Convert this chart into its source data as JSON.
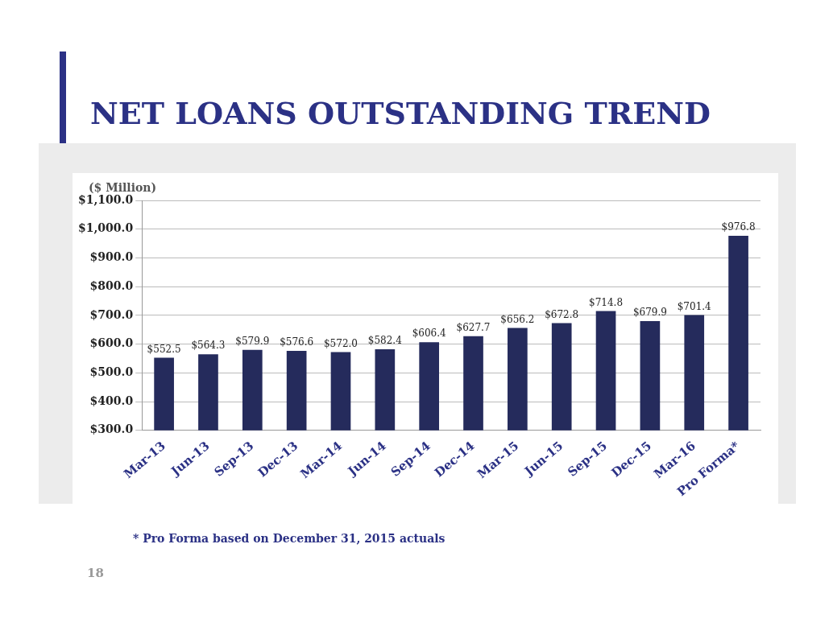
{
  "chart_data": {
    "type": "bar",
    "title": "NET LOANS OUTSTANDING TREND",
    "ylabel": "($ Million)",
    "categories": [
      "Mar-13",
      "Jun-13",
      "Sep-13",
      "Dec-13",
      "Mar-14",
      "Jun-14",
      "Sep-14",
      "Dec-14",
      "Mar-15",
      "Jun-15",
      "Sep-15",
      "Dec-15",
      "Mar-16",
      "Pro Forma*"
    ],
    "values": [
      552.5,
      564.3,
      579.9,
      576.6,
      572.0,
      582.4,
      606.4,
      627.7,
      656.2,
      672.8,
      714.8,
      679.9,
      701.4,
      976.8
    ],
    "value_labels": [
      "$552.5",
      "$564.3",
      "$579.9",
      "$576.6",
      "$572.0",
      "$582.4",
      "$606.4",
      "$627.7",
      "$656.2",
      "$672.8",
      "$714.8",
      "$679.9",
      "$701.4",
      "$976.8"
    ],
    "color": "#252b5c",
    "ylim": [
      300,
      1100
    ],
    "yticks": [
      {
        "value": 300,
        "label": "$300.0"
      },
      {
        "value": 400,
        "label": "$400.0"
      },
      {
        "value": 500,
        "label": "$500.0"
      },
      {
        "value": 600,
        "label": "$600.0"
      },
      {
        "value": 700,
        "label": "$700.0"
      },
      {
        "value": 800,
        "label": "$800.0"
      },
      {
        "value": 900,
        "label": "$900.0"
      },
      {
        "value": 1000,
        "label": "$1,000.0"
      },
      {
        "value": 1100,
        "label": "$1,100.0"
      }
    ],
    "grid": "y",
    "legend": false,
    "annotations": [
      "* Pro Forma based on December 31, 2015 actuals",
      "18"
    ]
  }
}
